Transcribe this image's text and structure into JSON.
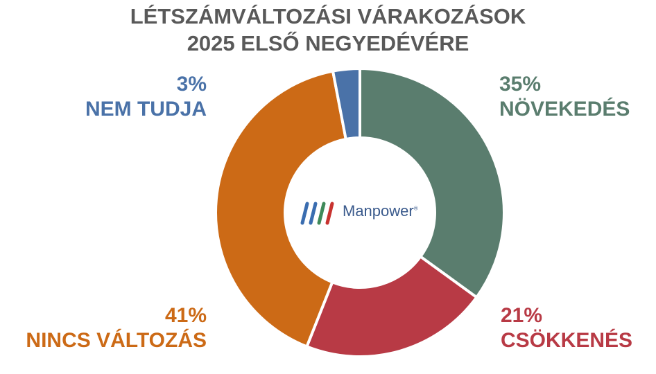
{
  "title": {
    "line1": "LÉTSZÁMVÁLTOZÁSI VÁRAKOZÁSOK",
    "line2": "2025 ELSŐ NEGYEDÉVÉRE"
  },
  "logo": {
    "text": "Manpower",
    "mark": "®"
  },
  "chart_data": {
    "type": "pie",
    "variant": "donut",
    "title": "LÉTSZÁMVÁLTOZÁSI VÁRAKOZÁSOK 2025 ELSŐ NEGYEDÉVÉRE",
    "unit": "%",
    "slices": [
      {
        "key": "novekedes",
        "label": "NÖVEKEDÉS",
        "value": 35,
        "value_label": "35%",
        "color": "#5a7d6e"
      },
      {
        "key": "csokkenes",
        "label": "CSÖKKENÉS",
        "value": 21,
        "value_label": "21%",
        "color": "#b83a45"
      },
      {
        "key": "nincs",
        "label": "NINCS VÁLTOZÁS",
        "value": 41,
        "value_label": "41%",
        "color": "#cc6a16"
      },
      {
        "key": "nem_tudja",
        "label": "NEM TUDJA",
        "value": 3,
        "value_label": "3%",
        "color": "#4a72a8"
      }
    ],
    "start": "top, clockwise",
    "legend": "none (direct labels in corners)"
  }
}
